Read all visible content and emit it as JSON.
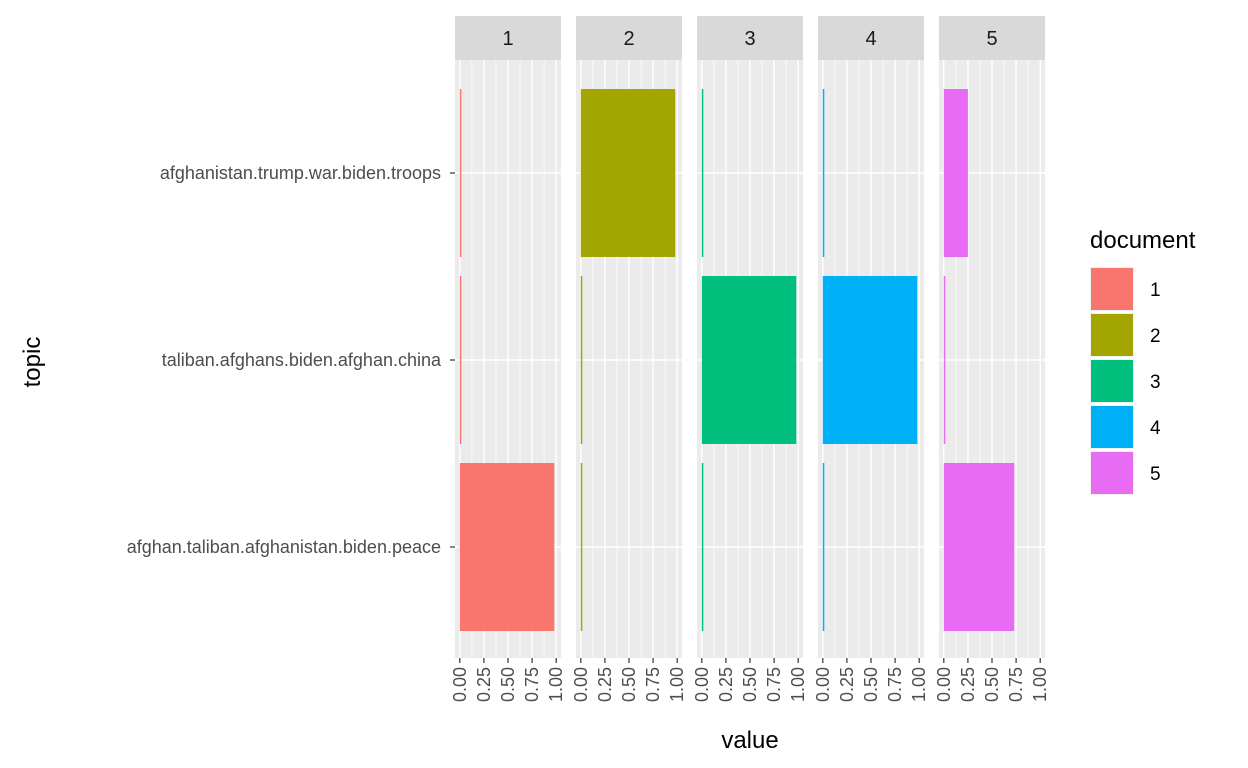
{
  "chart_data": {
    "type": "bar",
    "orientation": "horizontal",
    "facet_by": "document",
    "facets": [
      "1",
      "2",
      "3",
      "4",
      "5"
    ],
    "categories": [
      "afghanistan.trump.war.biden.troops",
      "taliban.afghans.biden.afghan.china",
      "afghan.taliban.afghanistan.biden.peace"
    ],
    "series": [
      {
        "name": "1",
        "color": "#F8766D",
        "values": [
          0.01,
          0.01,
          0.98
        ]
      },
      {
        "name": "2",
        "color": "#A3A500",
        "values": [
          0.98,
          0.01,
          0.01
        ]
      },
      {
        "name": "3",
        "color": "#00BF7D",
        "values": [
          0.01,
          0.98,
          0.01
        ]
      },
      {
        "name": "4",
        "color": "#00B0F6",
        "values": [
          0.01,
          0.98,
          0.01
        ]
      },
      {
        "name": "5",
        "color": "#E76BF3",
        "values": [
          0.25,
          0.01,
          0.73
        ]
      }
    ],
    "xlim": [
      0,
      1
    ],
    "x_ticks": [
      "0.00",
      "0.25",
      "0.50",
      "0.75",
      "1.00"
    ],
    "xlabel": "value",
    "ylabel": "topic",
    "legend_title": "document",
    "legend_position": "right",
    "grid": true
  }
}
